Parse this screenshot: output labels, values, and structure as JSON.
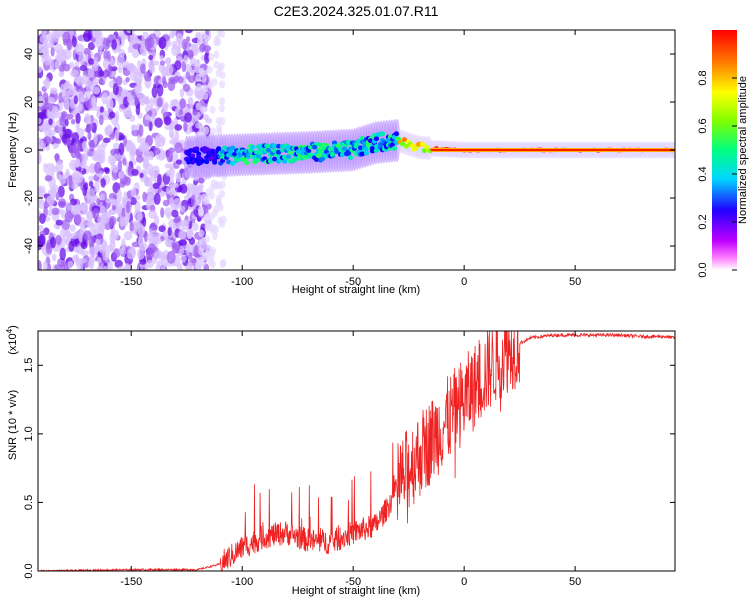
{
  "chart_data": [
    {
      "type": "heatmap",
      "title": "C2E3.2024.325.01.07.R11",
      "xlabel": "Height of straight line (km)",
      "ylabel": "Frequency (Hz)",
      "xlim": [
        -192,
        95
      ],
      "ylim": [
        -50,
        50
      ],
      "xticks": [
        "-150",
        "-100",
        "-50",
        "0",
        "50"
      ],
      "yticks": [
        "-40",
        "-20",
        "0",
        "20",
        "40"
      ],
      "grid": false,
      "colorbar": {
        "label": "Normalized spectral amplitude",
        "range": [
          0,
          1
        ],
        "ticks": [
          "0.0",
          "0.2",
          "0.4",
          "0.6",
          "0.8"
        ],
        "colormap": [
          "#ffffff",
          "#ff00ff",
          "#8000ff",
          "#0000ff",
          "#00c8ff",
          "#00ff80",
          "#80ff00",
          "#ffff00",
          "#ff8000",
          "#ff0000"
        ]
      },
      "features": [
        {
          "region": "noise",
          "x_range": [
            -192,
            -115
          ],
          "y_range": [
            -50,
            50
          ],
          "amplitude": 0.15
        },
        {
          "region": "signal-band",
          "x_range": [
            -125,
            -30
          ],
          "center_hz": [
            [
              -125,
              -3
            ],
            [
              -100,
              -2
            ],
            [
              -70,
              -1
            ],
            [
              -50,
              0
            ],
            [
              -40,
              3
            ],
            [
              -30,
              4
            ]
          ],
          "amplitude": 0.35
        },
        {
          "region": "signal-band",
          "x_range": [
            -30,
            95
          ],
          "center_hz": [
            [
              -30,
              4
            ],
            [
              -20,
              1
            ],
            [
              0,
              0
            ],
            [
              95,
              0
            ]
          ],
          "amplitude": 0.9
        }
      ]
    },
    {
      "type": "line",
      "title": "",
      "xlabel": "Height of straight line (km)",
      "ylabel": "SNR (10 * v/v)",
      "scale_label": "(x10",
      "scale_exp": "4",
      "xlim": [
        -192,
        95
      ],
      "ylim": [
        0,
        1.75
      ],
      "xticks": [
        "-150",
        "-100",
        "-50",
        "0",
        "50"
      ],
      "yticks": [
        "0.0",
        "0.5",
        "1.0",
        "1.5"
      ],
      "grid": false,
      "series": [
        {
          "color": "#ee2222",
          "x": [
            -192,
            -150,
            -120,
            -110,
            -100,
            -90,
            -80,
            -70,
            -60,
            -50,
            -40,
            -35,
            -30,
            -25,
            -20,
            -15,
            -10,
            -5,
            0,
            5,
            10,
            15,
            20,
            25,
            30,
            40,
            50,
            60,
            70,
            80,
            90,
            95
          ],
          "y": [
            0.0,
            0.01,
            0.01,
            0.05,
            0.17,
            0.25,
            0.28,
            0.22,
            0.21,
            0.28,
            0.33,
            0.45,
            0.6,
            0.75,
            0.85,
            0.95,
            1.05,
            1.15,
            1.25,
            1.35,
            1.45,
            1.55,
            1.62,
            1.66,
            1.7,
            1.72,
            1.72,
            1.72,
            1.72,
            1.71,
            1.71,
            1.7
          ]
        }
      ]
    }
  ]
}
